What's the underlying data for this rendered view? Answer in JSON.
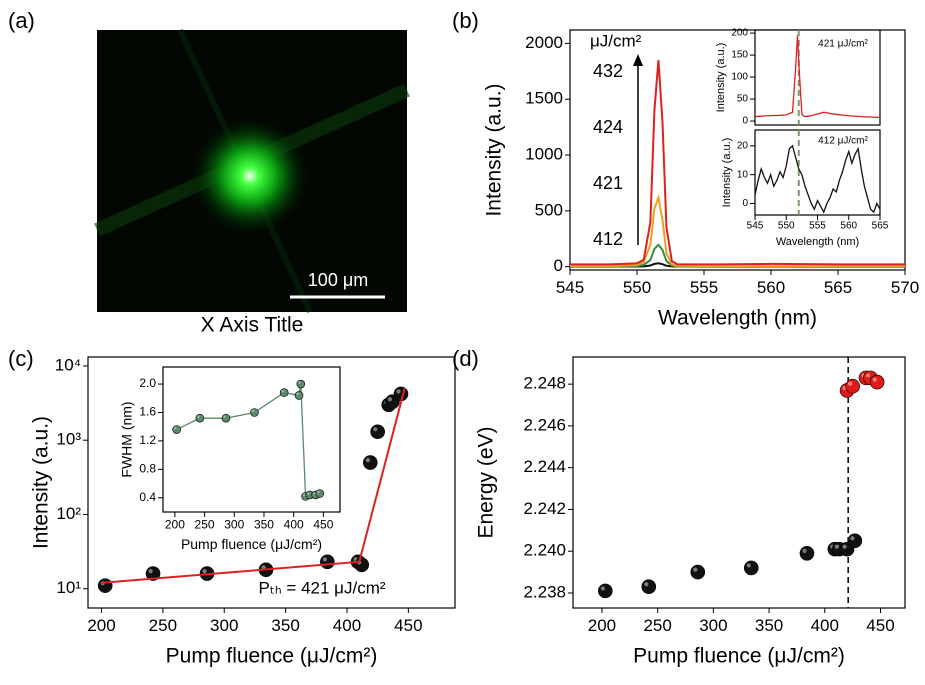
{
  "chart_data": [
    {
      "type": "image",
      "panel_label": "(a)",
      "xlabel": "X Axis Title",
      "scale_bar": "100 μm"
    },
    {
      "type": "line",
      "panel_label": "(b)",
      "xlabel": "Wavelength (nm)",
      "ylabel": "Intensity (a.u.)",
      "xlim": [
        545,
        570
      ],
      "ylim": [
        -30,
        2120
      ],
      "xticks": [
        545,
        550,
        555,
        560,
        565,
        570
      ],
      "yticks": [
        0,
        500,
        1000,
        1500,
        2000
      ],
      "legend_unit": "μJ/cm²",
      "x": [
        545,
        548,
        550,
        550.5,
        551,
        551.3,
        551.6,
        551.9,
        552.2,
        552.6,
        553,
        556,
        560,
        565,
        570
      ],
      "series": [
        {
          "name": "432",
          "color": "#e02020",
          "values": [
            20,
            20,
            30,
            60,
            400,
            1400,
            1850,
            1300,
            350,
            50,
            22,
            20,
            25,
            20,
            20
          ]
        },
        {
          "name": "424",
          "color": "#f0a020",
          "values": [
            5,
            5,
            15,
            40,
            200,
            520,
            620,
            420,
            120,
            20,
            8,
            5,
            5,
            5,
            5
          ]
        },
        {
          "name": "421",
          "color": "#3a8a4a",
          "values": [
            0,
            0,
            5,
            15,
            60,
            160,
            195,
            150,
            50,
            10,
            3,
            0,
            0,
            0,
            0
          ]
        },
        {
          "name": "412",
          "color": "#111111",
          "values": [
            0,
            0,
            1,
            3,
            10,
            25,
            30,
            22,
            8,
            2,
            1,
            0,
            0,
            0,
            0
          ]
        }
      ]
    },
    {
      "type": "line",
      "annotation": "421 μJ/cm²",
      "ylabel": "Intensity (a.u.)",
      "xlim": [
        545,
        565
      ],
      "ylim": [
        -9,
        207
      ],
      "yticks": [
        0,
        50,
        100,
        150,
        200
      ],
      "vline": 552,
      "x": [
        545,
        547,
        549,
        550,
        551,
        551.5,
        551.8,
        552.1,
        552.5,
        553,
        554,
        556,
        558,
        560,
        562,
        565
      ],
      "series": [
        {
          "color": "#e02020",
          "values": [
            10,
            12,
            13,
            14,
            20,
            120,
            195,
            110,
            15,
            10,
            12,
            20,
            15,
            12,
            10,
            8
          ]
        }
      ]
    },
    {
      "type": "line",
      "annotation": "412 μJ/cm²",
      "xlabel": "Wavelength (nm)",
      "ylabel": "Intensity (a.u.)",
      "xlim": [
        545,
        565
      ],
      "ylim": [
        -4,
        25.5
      ],
      "xticks": [
        545,
        550,
        555,
        560,
        565
      ],
      "yticks": [
        0,
        10,
        20
      ],
      "vline": 552,
      "x": [
        545,
        545.5,
        546,
        546.5,
        547,
        547.5,
        548,
        548.5,
        549,
        549.5,
        550,
        550.5,
        551,
        551.5,
        552,
        552.5,
        553,
        553.5,
        554,
        554.5,
        555,
        555.5,
        556,
        556.5,
        557,
        557.5,
        558,
        558.5,
        559,
        559.5,
        560,
        560.5,
        561,
        561.5,
        562,
        562.5,
        563,
        563.5,
        564,
        564.5,
        565
      ],
      "series": [
        {
          "color": "#111111",
          "values": [
            3,
            8,
            12,
            9,
            7,
            10,
            6,
            8,
            11,
            9,
            13,
            19,
            20,
            16,
            12,
            10,
            6,
            3,
            0,
            -2,
            1,
            -1,
            -3,
            0,
            2,
            5,
            4,
            8,
            11,
            15,
            18,
            14,
            17,
            19,
            12,
            6,
            2,
            -2,
            -3,
            0,
            -2
          ]
        }
      ]
    },
    {
      "type": "scatter",
      "panel_label": "(c)",
      "xlabel": "Pump fluence (μJ/cm²)",
      "ylabel": "Intensity (a.u.)",
      "log_y": true,
      "xlim": [
        189,
        488
      ],
      "ylim": [
        5.5,
        13200
      ],
      "xticks": [
        200,
        250,
        300,
        350,
        400,
        450
      ],
      "yticks": [
        {
          "value": 10,
          "label": "10¹"
        },
        {
          "value": 100,
          "label": "10²"
        },
        {
          "value": 1000,
          "label": "10³"
        },
        {
          "value": 10000,
          "label": "10⁴"
        }
      ],
      "annotation": "Pₜₕ = 421 μJ/cm²",
      "series": [
        {
          "style": "line",
          "color": "#e02020",
          "x": [
            200,
            410,
            447
          ],
          "values": [
            12,
            23,
            5000
          ]
        },
        {
          "style": "markers",
          "color": "#111111",
          "x": [
            203,
            242,
            286,
            334,
            384,
            409,
            412,
            419,
            425,
            434,
            437,
            444
          ],
          "values": [
            11,
            16,
            16,
            18,
            23,
            23,
            21,
            500,
            1300,
            3000,
            3300,
            4200
          ]
        }
      ]
    },
    {
      "type": "line",
      "xlabel": "Pump fluence (μJ/cm²)",
      "ylabel": "FWHM (nm)",
      "xlim": [
        180,
        478
      ],
      "ylim": [
        0.2,
        2.24
      ],
      "xticks": [
        200,
        250,
        300,
        350,
        400,
        450
      ],
      "yticks": [
        0.4,
        0.8,
        1.2,
        1.6,
        {
          "value": 2,
          "label": "2.0"
        }
      ],
      "series": [
        {
          "style": "line+markers",
          "color": "#5a8a6a",
          "x": [
            203,
            242,
            286,
            334,
            384,
            409,
            412,
            420,
            427,
            437,
            444
          ],
          "values": [
            1.36,
            1.52,
            1.52,
            1.6,
            1.88,
            1.84,
            2.0,
            0.42,
            0.44,
            0.44,
            0.46
          ]
        }
      ]
    },
    {
      "type": "scatter",
      "panel_label": "(d)",
      "xlabel": "Pump fluence (μJ/cm²)",
      "ylabel": "Energy (eV)",
      "xlim": [
        174,
        472
      ],
      "ylim": [
        2.23728,
        2.2493
      ],
      "xticks": [
        200,
        250,
        300,
        350,
        400,
        450
      ],
      "yticks": [
        2.238,
        {
          "value": 2.24,
          "label": "2.240"
        },
        2.242,
        2.244,
        2.246,
        2.248
      ],
      "vline": 421,
      "series": [
        {
          "style": "markers",
          "color": "#111111",
          "x": [
            203,
            242,
            286,
            334,
            384,
            409,
            413,
            420,
            427
          ],
          "values": [
            2.2381,
            2.2383,
            2.239,
            2.2392,
            2.2399,
            2.2401,
            2.2401,
            2.2401,
            2.2405
          ]
        },
        {
          "style": "markers",
          "color": "#e01818",
          "x": [
            420,
            425,
            437,
            441,
            447
          ],
          "values": [
            2.2477,
            2.2479,
            2.2483,
            2.2483,
            2.2481
          ]
        }
      ]
    }
  ]
}
